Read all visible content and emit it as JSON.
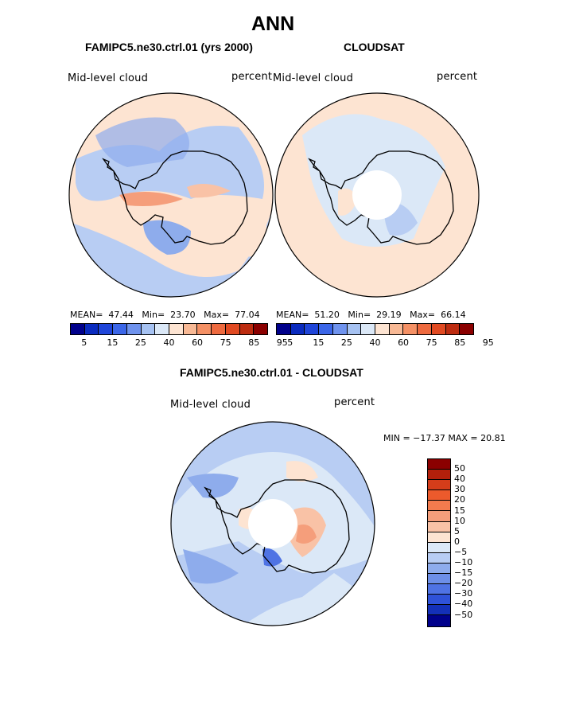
{
  "title": "ANN",
  "panels": [
    {
      "heading": "FAMIPC5.ne30.ctrl.01 (yrs 2000)",
      "label_left": "Mid-level cloud",
      "label_right": "percent",
      "stats": {
        "mean_label": "MEAN=",
        "mean": "47.44",
        "min_label": "Min=",
        "min": "23.70",
        "max_label": "Max=",
        "max": "77.04"
      }
    },
    {
      "heading": "CLOUDSAT",
      "label_left": "Mid-level cloud",
      "label_right": "percent",
      "stats": {
        "mean_label": "MEAN=",
        "mean": "51.20",
        "min_label": "Min=",
        "min": "29.19",
        "max_label": "Max=",
        "max": "66.14"
      }
    }
  ],
  "abs_colorbar": {
    "colors": [
      "#00008b",
      "#0a2bbf",
      "#1f45d9",
      "#3b66e8",
      "#6f93ee",
      "#a6c2f2",
      "#dbe8f7",
      "#fde4d2",
      "#f8b995",
      "#f59165",
      "#ee6a3f",
      "#e14a22",
      "#bd2c10",
      "#8b0000"
    ],
    "tick_labels": [
      "5",
      "15",
      "25",
      "40",
      "60",
      "75",
      "85",
      "95"
    ]
  },
  "diff_panel": {
    "heading": "FAMIPC5.ne30.ctrl.01 - CLOUDSAT",
    "label_left": "Mid-level cloud",
    "label_right": "percent",
    "minmax_text": "MIN = −17.37 MAX = 20.81"
  },
  "diff_colorbar": {
    "colors": [
      "#8b0000",
      "#b3200b",
      "#d43d1a",
      "#ec5a2c",
      "#f27b4e",
      "#f59e7b",
      "#f9c2a6",
      "#fde4d2",
      "#dbe8f7",
      "#b8cdf3",
      "#8eacec",
      "#6d8fe8",
      "#4f73e4",
      "#2f52d8",
      "#1430b8",
      "#00008b"
    ],
    "tick_labels": [
      "50",
      "40",
      "30",
      "20",
      "15",
      "10",
      "5",
      "0",
      "−5",
      "−10",
      "−15",
      "−20",
      "−30",
      "−40",
      "−50"
    ]
  },
  "chart_data": [
    {
      "type": "heatmap",
      "projection": "south-polar-stereographic",
      "title": "FAMIPC5.ne30.ctrl.01 (yrs 2000)",
      "variable": "Mid-level cloud",
      "units": "percent",
      "levels": [
        5,
        10,
        15,
        20,
        25,
        30,
        40,
        50,
        60,
        70,
        75,
        80,
        85,
        90,
        95
      ],
      "mean": 47.44,
      "min": 23.7,
      "max": 77.04
    },
    {
      "type": "heatmap",
      "projection": "south-polar-stereographic",
      "title": "CLOUDSAT",
      "variable": "Mid-level cloud",
      "units": "percent",
      "levels": [
        5,
        10,
        15,
        20,
        25,
        30,
        40,
        50,
        60,
        70,
        75,
        80,
        85,
        90,
        95
      ],
      "mean": 51.2,
      "min": 29.19,
      "max": 66.14
    },
    {
      "type": "heatmap",
      "projection": "south-polar-stereographic",
      "title": "FAMIPC5.ne30.ctrl.01 - CLOUDSAT",
      "variable": "Mid-level cloud",
      "units": "percent",
      "levels": [
        -50,
        -40,
        -30,
        -20,
        -15,
        -10,
        -5,
        0,
        5,
        10,
        15,
        20,
        30,
        40,
        50
      ],
      "min": -17.37,
      "max": 20.81
    }
  ]
}
